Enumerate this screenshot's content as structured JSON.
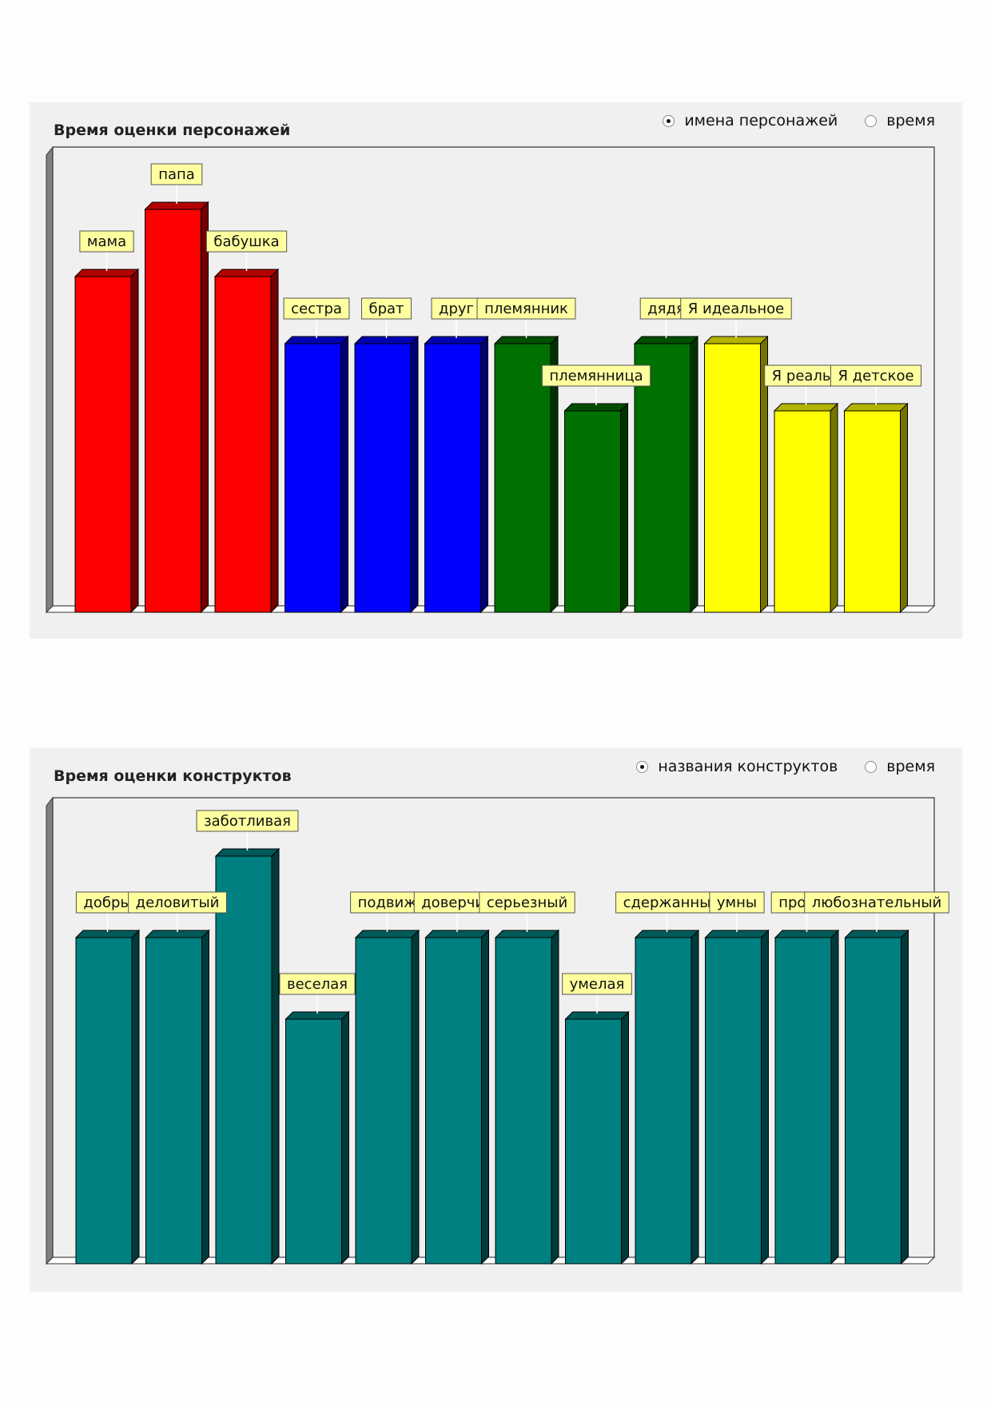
{
  "charts": [
    {
      "title": "Время оценки персонажей",
      "radio_options": [
        {
          "label": "имена персонажей",
          "checked": true
        },
        {
          "label": "время",
          "checked": false
        }
      ],
      "chart_data": {
        "type": "bar",
        "title": "Время оценки персонажей",
        "xlabel": "",
        "ylabel": "",
        "ylim": [
          0,
          6
        ],
        "grid": false,
        "style": "3d",
        "categories": [
          "мама",
          "папа",
          "бабушка",
          "сестра",
          "брат",
          "друг",
          "племянник",
          "племянница",
          "дядя",
          "Я идеальное",
          "Я реальное",
          "Я детское"
        ],
        "label_display": [
          "мама",
          "папа",
          "бабушка",
          "сестра",
          "брат",
          "друг",
          "племянник",
          "племянница",
          "дядя",
          "Я идеальное",
          "Я реальн",
          "Я детское"
        ],
        "values": [
          5,
          6,
          5,
          4,
          4,
          4,
          4,
          3,
          4,
          4,
          3,
          3
        ],
        "colors": [
          "#ff0000",
          "#ff0000",
          "#ff0000",
          "#0000ff",
          "#0000ff",
          "#0000ff",
          "#007000",
          "#007000",
          "#007000",
          "#ffff00",
          "#ffff00",
          "#ffff00"
        ]
      }
    },
    {
      "title": "Время оценки конструктов",
      "radio_options": [
        {
          "label": "названия конструктов",
          "checked": true
        },
        {
          "label": "время",
          "checked": false
        }
      ],
      "chart_data": {
        "type": "bar",
        "title": "Время оценки конструктов",
        "xlabel": "",
        "ylabel": "",
        "ylim": [
          0,
          5
        ],
        "grid": false,
        "style": "3d",
        "categories": [
          "добрый",
          "деловитый",
          "заботливая",
          "веселая",
          "подвижный",
          "доверчивый",
          "серьезный",
          "умелая",
          "сдержанный",
          "умный",
          "профессиональный",
          "любознательный"
        ],
        "label_display": [
          "добры",
          "деловитый",
          "заботливая",
          "веселая",
          "подвиж",
          "доверчив",
          "серьезный",
          "умелая",
          "сдержанны",
          "умны",
          "профес",
          "любознательный"
        ],
        "values": [
          4,
          4,
          5,
          3,
          4,
          4,
          4,
          3,
          4,
          4,
          4,
          4
        ],
        "colors": [
          "#008080",
          "#008080",
          "#008080",
          "#008080",
          "#008080",
          "#008080",
          "#008080",
          "#008080",
          "#008080",
          "#008080",
          "#008080",
          "#008080"
        ]
      }
    }
  ],
  "theme": {
    "panel_bg": "#f0f0f0",
    "label_bg": "#ffffa0",
    "frame_color": "#333333",
    "wall_color": "#808080"
  }
}
